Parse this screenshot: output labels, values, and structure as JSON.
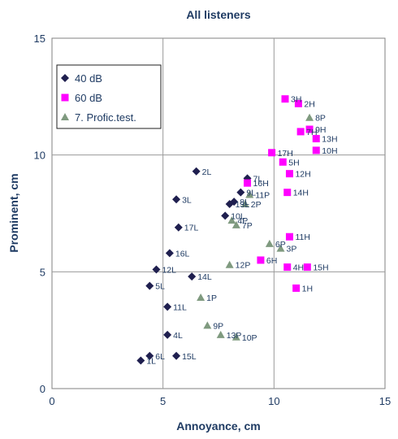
{
  "chart_data": {
    "type": "scatter",
    "title": "All listeners",
    "xlabel": "Annoyance, cm",
    "ylabel": "Prominent, cm",
    "xlim": [
      0,
      15
    ],
    "ylim": [
      0,
      15
    ],
    "xticks": [
      "0",
      "5",
      "10",
      "15"
    ],
    "yticks": [
      "0",
      "5",
      "10",
      "15"
    ],
    "grid": true,
    "legend_position": "top-left",
    "series": [
      {
        "name": "40 dB",
        "marker": "diamond",
        "color": "#1f1f4f",
        "points": [
          {
            "label": "1L",
            "x": 4.0,
            "y": 1.2
          },
          {
            "label": "6L",
            "x": 4.4,
            "y": 1.4
          },
          {
            "label": "15L",
            "x": 5.6,
            "y": 1.4
          },
          {
            "label": "4L",
            "x": 5.2,
            "y": 2.3
          },
          {
            "label": "11L",
            "x": 5.2,
            "y": 3.5
          },
          {
            "label": "5L",
            "x": 4.4,
            "y": 4.4
          },
          {
            "label": "14L",
            "x": 6.3,
            "y": 4.8
          },
          {
            "label": "12L",
            "x": 4.7,
            "y": 5.1
          },
          {
            "label": "16L",
            "x": 5.3,
            "y": 5.8
          },
          {
            "label": "17L",
            "x": 5.7,
            "y": 6.9
          },
          {
            "label": "10L",
            "x": 7.8,
            "y": 7.4
          },
          {
            "label": "3L",
            "x": 5.6,
            "y": 8.1
          },
          {
            "label": "2L",
            "x": 6.5,
            "y": 9.3
          },
          {
            "label": "7L",
            "x": 8.8,
            "y": 9.0
          },
          {
            "label": "9L",
            "x": 8.5,
            "y": 8.4
          },
          {
            "label": "8L",
            "x": 8.2,
            "y": 8.0
          },
          {
            "label": "13L",
            "x": 8.0,
            "y": 7.9
          }
        ]
      },
      {
        "name": "60 dB",
        "marker": "square",
        "color": "#ff00ff",
        "points": [
          {
            "label": "3H",
            "x": 10.5,
            "y": 12.4
          },
          {
            "label": "2H",
            "x": 11.1,
            "y": 12.2
          },
          {
            "label": "7H",
            "x": 11.2,
            "y": 11.0
          },
          {
            "label": "9H",
            "x": 11.6,
            "y": 11.1
          },
          {
            "label": "13H",
            "x": 11.9,
            "y": 10.7
          },
          {
            "label": "10H",
            "x": 11.9,
            "y": 10.2
          },
          {
            "label": "17H",
            "x": 9.9,
            "y": 10.1
          },
          {
            "label": "5H",
            "x": 10.4,
            "y": 9.7
          },
          {
            "label": "12H",
            "x": 10.7,
            "y": 9.2
          },
          {
            "label": "16H",
            "x": 8.8,
            "y": 8.8
          },
          {
            "label": "14H",
            "x": 10.6,
            "y": 8.4
          },
          {
            "label": "11H",
            "x": 10.7,
            "y": 6.5
          },
          {
            "label": "6H",
            "x": 9.4,
            "y": 5.5
          },
          {
            "label": "4H",
            "x": 10.6,
            "y": 5.2
          },
          {
            "label": "15H",
            "x": 11.5,
            "y": 5.2
          },
          {
            "label": "1H",
            "x": 11.0,
            "y": 4.3
          }
        ]
      },
      {
        "name": "7. Profic.test.",
        "marker": "triangle",
        "color": "#7f9a7f",
        "points": [
          {
            "label": "8P",
            "x": 11.6,
            "y": 11.6
          },
          {
            "label": "11P",
            "x": 8.9,
            "y": 8.3
          },
          {
            "label": "2P",
            "x": 8.7,
            "y": 7.9
          },
          {
            "label": "4P",
            "x": 8.1,
            "y": 7.2
          },
          {
            "label": "7P",
            "x": 8.3,
            "y": 7.0
          },
          {
            "label": "6P",
            "x": 9.8,
            "y": 6.2
          },
          {
            "label": "3P",
            "x": 10.3,
            "y": 6.0
          },
          {
            "label": "12P",
            "x": 8.0,
            "y": 5.3
          },
          {
            "label": "1P",
            "x": 6.7,
            "y": 3.9
          },
          {
            "label": "9P",
            "x": 7.0,
            "y": 2.7
          },
          {
            "label": "13P",
            "x": 7.6,
            "y": 2.3
          },
          {
            "label": "10P",
            "x": 8.3,
            "y": 2.2
          }
        ]
      }
    ]
  }
}
